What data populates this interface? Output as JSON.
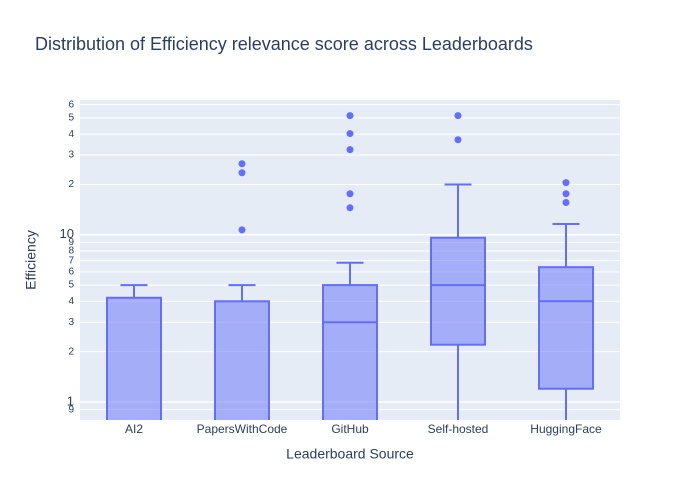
{
  "chart_data": {
    "type": "box",
    "title": "Distribution of Efficiency relevance score across Leaderboards",
    "x_label": "Leaderboard Source",
    "y_label": "Efficiency",
    "categories": [
      "AI2",
      "PapersWithCode",
      "GitHub",
      "Self-hosted",
      "HuggingFace"
    ],
    "min": [
      0.5,
      0.5,
      0.5,
      0.5,
      0.5
    ],
    "q1": [
      0.6,
      0.6,
      0.6,
      2.2,
      1.2
    ],
    "median": [
      0.7,
      0.7,
      3,
      5,
      4
    ],
    "q3": [
      4.2,
      4,
      5,
      9.6,
      6.4
    ],
    "max": [
      5,
      5,
      6.8,
      20,
      11.6
    ],
    "outliers": [
      [],
      [
        10.7,
        23.5,
        26.6
      ],
      [
        14.5,
        17.6,
        32.3,
        40.3,
        51.6
      ],
      [
        37,
        51.6
      ],
      [
        15.6,
        17.6,
        20.5
      ]
    ],
    "color": "#636efa",
    "log_y": true,
    "grid": true,
    "ylim": [
      0.78,
      64
    ],
    "yticks": [
      {
        "value": 0.9,
        "label": "9"
      },
      1,
      2,
      3,
      4,
      5,
      6,
      7,
      8,
      9,
      {
        "value": 10,
        "label": "10"
      },
      {
        "value": 20,
        "label": "2"
      },
      {
        "value": 30,
        "label": "3"
      },
      {
        "value": 40,
        "label": "4"
      },
      {
        "value": 50,
        "label": "5"
      },
      {
        "value": 60,
        "label": "6"
      }
    ]
  }
}
